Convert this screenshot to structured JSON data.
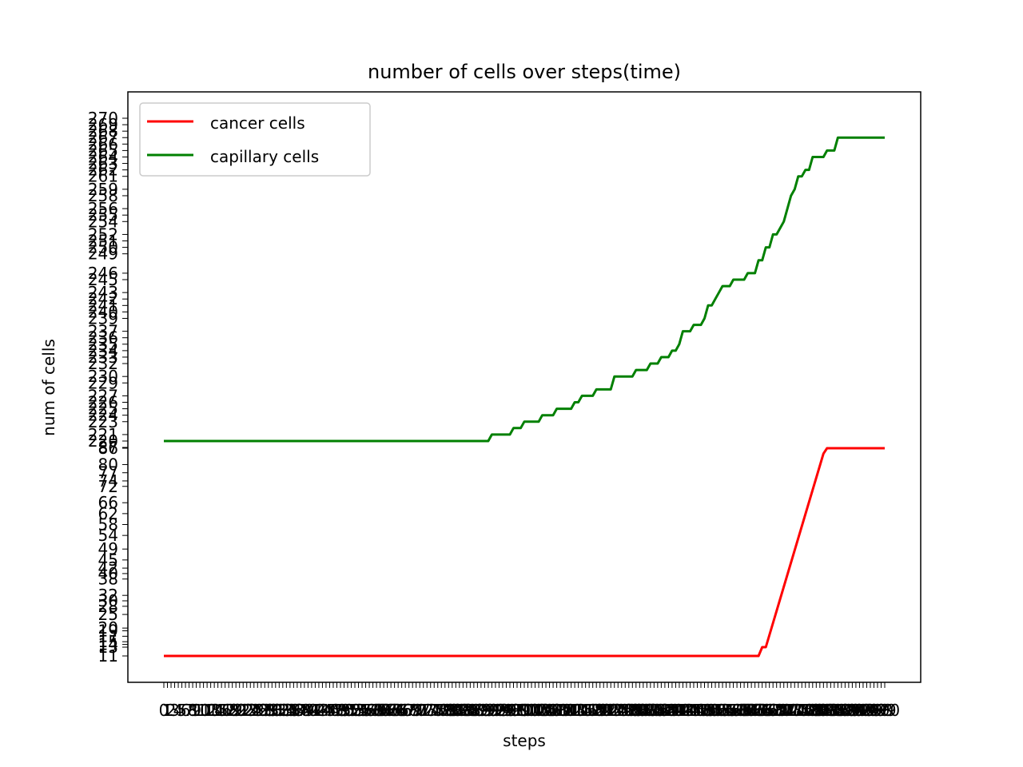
{
  "chart_data": {
    "type": "line",
    "title": "number of cells over steps(time)",
    "xlabel": "steps",
    "ylabel": "num of cells",
    "legend_position": "top-left",
    "grid": false,
    "series": [
      {
        "name": "cancer cells",
        "color": "#ff0000",
        "points": [
          [
            0,
            11
          ],
          [
            165,
            11
          ],
          [
            166,
            13
          ],
          [
            167,
            13
          ],
          [
            183,
            84
          ],
          [
            184,
            86
          ],
          [
            200,
            86
          ]
        ]
      },
      {
        "name": "capillary cells",
        "color": "#008000",
        "points": [
          [
            0,
            220
          ],
          [
            90,
            220
          ],
          [
            91,
            221
          ],
          [
            96,
            221
          ],
          [
            97,
            222
          ],
          [
            99,
            222
          ],
          [
            100,
            223
          ],
          [
            104,
            223
          ],
          [
            105,
            224
          ],
          [
            108,
            224
          ],
          [
            109,
            225
          ],
          [
            113,
            225
          ],
          [
            114,
            226
          ],
          [
            115,
            226
          ],
          [
            116,
            227
          ],
          [
            119,
            227
          ],
          [
            120,
            228
          ],
          [
            124,
            228
          ],
          [
            125,
            230
          ],
          [
            130,
            230
          ],
          [
            131,
            231
          ],
          [
            134,
            231
          ],
          [
            135,
            232
          ],
          [
            137,
            232
          ],
          [
            138,
            233
          ],
          [
            140,
            233
          ],
          [
            141,
            234
          ],
          [
            142,
            234
          ],
          [
            143,
            235
          ],
          [
            144,
            237
          ],
          [
            146,
            237
          ],
          [
            147,
            238
          ],
          [
            149,
            238
          ],
          [
            150,
            239
          ],
          [
            151,
            241
          ],
          [
            152,
            241
          ],
          [
            153,
            242
          ],
          [
            154,
            243
          ],
          [
            155,
            244
          ],
          [
            157,
            244
          ],
          [
            158,
            245
          ],
          [
            161,
            245
          ],
          [
            162,
            246
          ],
          [
            164,
            246
          ],
          [
            165,
            248
          ],
          [
            166,
            248
          ],
          [
            167,
            250
          ],
          [
            168,
            250
          ],
          [
            169,
            252
          ],
          [
            170,
            252
          ],
          [
            171,
            253
          ],
          [
            172,
            254
          ],
          [
            174,
            258
          ],
          [
            175,
            259
          ],
          [
            176,
            261
          ],
          [
            177,
            261
          ],
          [
            178,
            262
          ],
          [
            179,
            262
          ],
          [
            180,
            264
          ],
          [
            183,
            264
          ],
          [
            184,
            265
          ],
          [
            186,
            265
          ],
          [
            187,
            267
          ],
          [
            200,
            267
          ]
        ]
      }
    ],
    "ytick_labels": [
      "11",
      "13",
      "14",
      "15",
      "17",
      "19",
      "20",
      "25",
      "28",
      "30",
      "32",
      "38",
      "40",
      "42",
      "45",
      "49",
      "54",
      "58",
      "62",
      "66",
      "72",
      "74",
      "77",
      "80",
      "86",
      "87",
      "220",
      "221",
      "223",
      "224",
      "225",
      "226",
      "227",
      "229",
      "230",
      "232",
      "233",
      "234",
      "235",
      "236",
      "237",
      "239",
      "240",
      "241",
      "242",
      "243",
      "245",
      "246",
      "249",
      "250",
      "251",
      "252",
      "254",
      "255",
      "256",
      "258",
      "259",
      "261",
      "262",
      "263",
      "264",
      "265",
      "266",
      "267",
      "268",
      "269",
      "270"
    ],
    "xtick_count": 201,
    "xtick_labels_visible": [
      "0",
      "200"
    ]
  }
}
